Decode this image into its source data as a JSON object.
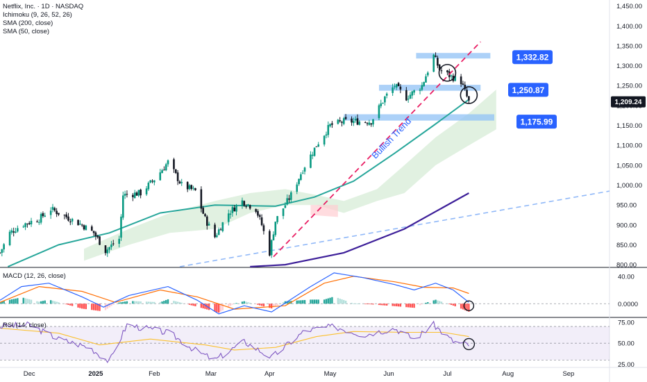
{
  "header": {
    "title": "Netflix, Inc. · 1D · NASDAQ",
    "indicators": [
      "Ichimoku (9, 26, 52, 26)",
      "SMA (200, close)",
      "SMA (50, close)"
    ]
  },
  "panes": {
    "macd_label": "MACD (12, 26, close)",
    "rsi_label": "RSI (14, close)"
  },
  "colors": {
    "up": "#089981",
    "down": "#131722",
    "sma50": "#26a69a",
    "sma200": "#3d1f99",
    "zone": "#90c2f5",
    "tag": "#2962ff",
    "trend": "#e91e63",
    "long_trend": "#90b8f8",
    "cloud_green": "#c8e6c9",
    "cloud_red": "#ffcdd2",
    "macd_line": "#2962ff",
    "signal_line": "#ff6d00",
    "rsi_line": "#7e57c2",
    "rsi_ma": "#fbc02d"
  },
  "chart_data": [
    {
      "type": "candlestick",
      "title": "Netflix, Inc. · 1D · NASDAQ",
      "x_ticks": [
        "Dec",
        "2025",
        "Feb",
        "Mar",
        "Apr",
        "May",
        "Jun",
        "Jul",
        "Aug",
        "Sep"
      ],
      "y_ticks": [
        "800.00",
        "850.00",
        "900.00",
        "950.00",
        "1,000.00",
        "1,050.00",
        "1,100.00",
        "1,150.00",
        "1,200.00",
        "1,250.00",
        "1,300.00",
        "1,350.00",
        "1,400.00",
        "1,450.00"
      ],
      "ylim": [
        795,
        1465
      ],
      "x_start": "2024-11-20",
      "x_end": "2025-09-28",
      "last_price": "1,209.24",
      "price_path": [
        [
          "2024-11-20",
          830
        ],
        [
          "2024-11-25",
          880
        ],
        [
          "2024-12-01",
          900
        ],
        [
          "2024-12-10",
          915
        ],
        [
          "2024-12-16",
          940
        ],
        [
          "2024-12-26",
          915
        ],
        [
          "2025-01-01",
          900
        ],
        [
          "2025-01-07",
          880
        ],
        [
          "2025-01-13",
          835
        ],
        [
          "2025-01-20",
          865
        ],
        [
          "2025-01-22",
          975
        ],
        [
          "2025-01-31",
          980
        ],
        [
          "2025-02-08",
          1020
        ],
        [
          "2025-02-14",
          1058
        ],
        [
          "2025-02-21",
          1000
        ],
        [
          "2025-02-28",
          985
        ],
        [
          "2025-03-05",
          915
        ],
        [
          "2025-03-10",
          870
        ],
        [
          "2025-03-17",
          930
        ],
        [
          "2025-03-24",
          960
        ],
        [
          "2025-03-31",
          940
        ],
        [
          "2025-04-03",
          900
        ],
        [
          "2025-04-07",
          830
        ],
        [
          "2025-04-10",
          910
        ],
        [
          "2025-04-18",
          975
        ],
        [
          "2025-04-24",
          1040
        ],
        [
          "2025-05-01",
          1100
        ],
        [
          "2025-05-08",
          1150
        ],
        [
          "2025-05-15",
          1160
        ],
        [
          "2025-05-22",
          1160
        ],
        [
          "2025-05-29",
          1160
        ],
        [
          "2025-06-05",
          1220
        ],
        [
          "2025-06-10",
          1250
        ],
        [
          "2025-06-16",
          1220
        ],
        [
          "2025-06-24",
          1250
        ],
        [
          "2025-06-30",
          1325
        ],
        [
          "2025-07-03",
          1290
        ],
        [
          "2025-07-08",
          1275
        ],
        [
          "2025-07-14",
          1260
        ],
        [
          "2025-07-18",
          1209
        ]
      ],
      "sma50": [
        [
          "2024-11-24",
          795
        ],
        [
          "2024-12-20",
          850
        ],
        [
          "2025-01-15",
          880
        ],
        [
          "2025-02-10",
          930
        ],
        [
          "2025-03-10",
          950
        ],
        [
          "2025-04-10",
          947
        ],
        [
          "2025-04-30",
          970
        ],
        [
          "2025-05-20",
          1010
        ],
        [
          "2025-06-10",
          1080
        ],
        [
          "2025-06-30",
          1150
        ],
        [
          "2025-07-18",
          1215
        ]
      ],
      "sma200": [
        [
          "2025-03-28",
          795
        ],
        [
          "2025-04-15",
          800
        ],
        [
          "2025-05-15",
          830
        ],
        [
          "2025-06-15",
          890
        ],
        [
          "2025-07-18",
          980
        ]
      ],
      "ichimoku_cloud": [
        [
          "2025-01-02",
          840,
          810
        ],
        [
          "2025-01-25",
          890,
          850
        ],
        [
          "2025-02-15",
          930,
          880
        ],
        [
          "2025-03-10",
          960,
          890
        ],
        [
          "2025-03-28",
          980,
          930
        ],
        [
          "2025-04-15",
          990,
          950
        ],
        [
          "2025-05-01",
          975,
          950
        ],
        [
          "2025-05-15",
          960,
          930
        ],
        [
          "2025-06-01",
          990,
          960
        ],
        [
          "2025-06-15",
          1050,
          980
        ],
        [
          "2025-07-01",
          1120,
          1050
        ],
        [
          "2025-07-18",
          1180,
          1100
        ],
        [
          "2025-08-01",
          1240,
          1140
        ]
      ],
      "cloud_red_segment": [
        [
          "2025-04-28",
          950,
          925
        ],
        [
          "2025-05-12",
          950,
          920
        ]
      ],
      "zones": [
        {
          "label": "1,332.82",
          "from": "2025-06-21",
          "to": "2025-07-29",
          "low": 1318,
          "high": 1332
        },
        {
          "label": "1,250.87",
          "from": "2025-06-02",
          "to": "2025-07-24",
          "low": 1237,
          "high": 1252
        },
        {
          "label": "1,175.99",
          "from": "2025-05-15",
          "to": "2025-07-31",
          "low": 1162,
          "high": 1178
        }
      ],
      "trendline": [
        [
          "2025-04-09",
          820
        ],
        [
          "2025-07-24",
          1360
        ]
      ],
      "trendline_label": "Bullish Trend",
      "long_trendline": [
        [
          "2025-02-20",
          795
        ],
        [
          "2025-09-28",
          985
        ]
      ],
      "circles": [
        [
          "2025-07-07",
          1282
        ],
        [
          "2025-07-18",
          1226
        ]
      ]
    },
    {
      "type": "line",
      "title": "MACD (12, 26, close)",
      "y_ticks": [
        "0.0000",
        "40.00"
      ],
      "ylim": [
        -18,
        52
      ],
      "macd": [
        [
          "2024-11-20",
          5
        ],
        [
          "2024-12-01",
          25
        ],
        [
          "2024-12-15",
          30
        ],
        [
          "2025-01-01",
          10
        ],
        [
          "2025-01-12",
          -5
        ],
        [
          "2025-01-25",
          12
        ],
        [
          "2025-02-14",
          25
        ],
        [
          "2025-03-01",
          5
        ],
        [
          "2025-03-12",
          -15
        ],
        [
          "2025-03-25",
          -3
        ],
        [
          "2025-04-08",
          -12
        ],
        [
          "2025-04-28",
          25
        ],
        [
          "2025-05-10",
          45
        ],
        [
          "2025-05-25",
          38
        ],
        [
          "2025-06-10",
          28
        ],
        [
          "2025-06-20",
          20
        ],
        [
          "2025-07-01",
          30
        ],
        [
          "2025-07-10",
          20
        ],
        [
          "2025-07-18",
          2
        ]
      ],
      "signal": [
        [
          "2024-11-20",
          2
        ],
        [
          "2024-12-10",
          25
        ],
        [
          "2025-01-01",
          18
        ],
        [
          "2025-01-18",
          2
        ],
        [
          "2025-02-10",
          20
        ],
        [
          "2025-03-01",
          10
        ],
        [
          "2025-03-20",
          -8
        ],
        [
          "2025-04-15",
          -3
        ],
        [
          "2025-05-05",
          30
        ],
        [
          "2025-05-20",
          40
        ],
        [
          "2025-06-10",
          32
        ],
        [
          "2025-06-25",
          24
        ],
        [
          "2025-07-10",
          23
        ],
        [
          "2025-07-18",
          15
        ]
      ],
      "circle": [
        "2025-07-18",
        -3
      ]
    },
    {
      "type": "line",
      "title": "RSI (14, close)",
      "y_ticks": [
        "25.00",
        "50.00",
        "75.00"
      ],
      "ylim": [
        22,
        80
      ],
      "band": [
        30,
        70
      ],
      "rsi": [
        [
          "2024-11-20",
          70
        ],
        [
          "2024-12-05",
          72
        ],
        [
          "2024-12-20",
          55
        ],
        [
          "2025-01-05",
          45
        ],
        [
          "2025-01-15",
          28
        ],
        [
          "2025-01-24",
          72
        ],
        [
          "2025-02-15",
          62
        ],
        [
          "2025-03-01",
          40
        ],
        [
          "2025-03-10",
          30
        ],
        [
          "2025-03-25",
          52
        ],
        [
          "2025-04-08",
          33
        ],
        [
          "2025-04-25",
          65
        ],
        [
          "2025-05-10",
          70
        ],
        [
          "2025-05-25",
          60
        ],
        [
          "2025-06-10",
          68
        ],
        [
          "2025-06-20",
          55
        ],
        [
          "2025-06-30",
          72
        ],
        [
          "2025-07-10",
          52
        ],
        [
          "2025-07-18",
          48
        ]
      ],
      "rsi_ma": [
        [
          "2024-11-20",
          68
        ],
        [
          "2024-12-20",
          62
        ],
        [
          "2025-01-10",
          48
        ],
        [
          "2025-02-05",
          55
        ],
        [
          "2025-03-05",
          48
        ],
        [
          "2025-03-20",
          42
        ],
        [
          "2025-04-10",
          45
        ],
        [
          "2025-05-01",
          58
        ],
        [
          "2025-05-20",
          64
        ],
        [
          "2025-06-15",
          63
        ],
        [
          "2025-07-05",
          63
        ],
        [
          "2025-07-18",
          58
        ]
      ],
      "circle": [
        "2025-07-18",
        49
      ]
    }
  ]
}
